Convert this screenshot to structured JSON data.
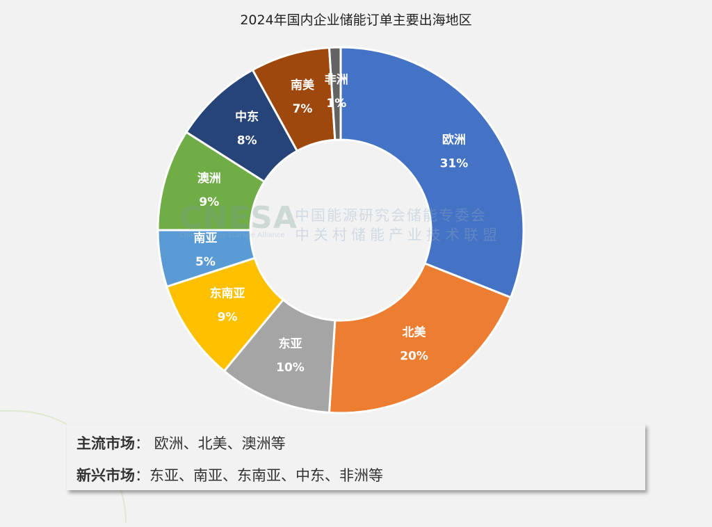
{
  "chart_data": {
    "type": "pie",
    "donut": true,
    "title": "2024年国内企业储能订单主要出海地区",
    "categories": [
      "欧洲",
      "北美",
      "东亚",
      "东南亚",
      "南亚",
      "澳洲",
      "中东",
      "南美",
      "非洲"
    ],
    "values": [
      31,
      20,
      10,
      9,
      5,
      9,
      8,
      7,
      1
    ],
    "labels": [
      "31%",
      "20%",
      "10%",
      "9%",
      "5%",
      "9%",
      "8%",
      "7%",
      "1%"
    ],
    "colors": [
      "#4472C4",
      "#ED7D31",
      "#A5A5A5",
      "#FFC000",
      "#5B9BD5",
      "#70AD47",
      "#264478",
      "#9E480E",
      "#636363"
    ],
    "start": "top",
    "direction": "clockwise",
    "legend": "none"
  },
  "watermark": {
    "logo": "CNESA",
    "english": "China Energy Storage Alliance",
    "line1": "中国能源研究会储能专委会",
    "line2": "中关村储能产业技术联盟"
  },
  "summary": {
    "mainstream_label": "主流市场",
    "mainstream_value": "：  欧洲、北美、澳洲等",
    "emerging_label": "新兴市场",
    "emerging_value": "：东亚、南亚、东南亚、中东、非洲等"
  }
}
